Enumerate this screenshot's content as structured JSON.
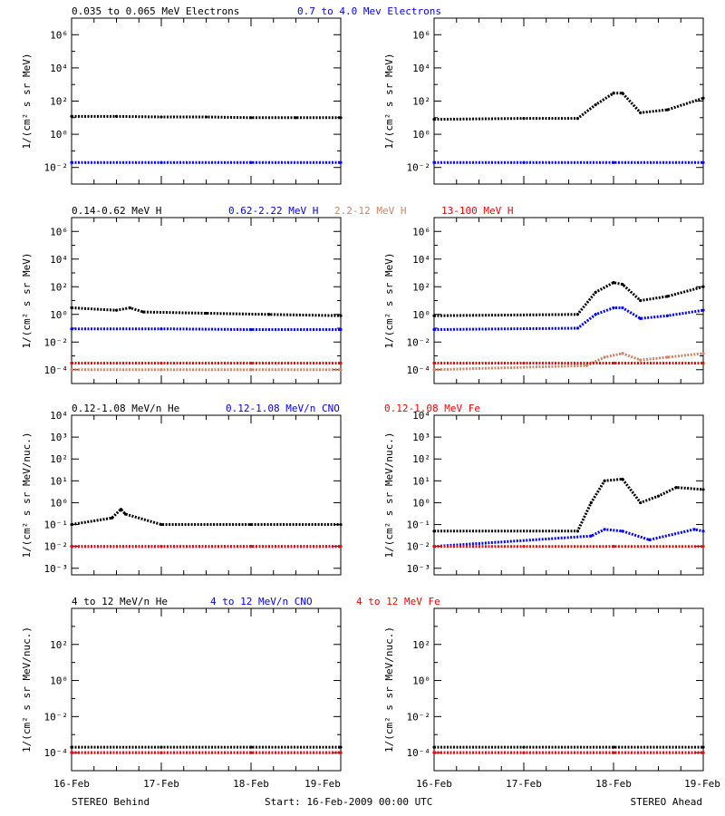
{
  "colors": {
    "black": "#000000",
    "blue": "#0000ff",
    "tan": "#c8866a",
    "red": "#ff0000"
  },
  "rows": [
    {
      "labels": [
        {
          "text": "0.035 to 0.065 MeV Electrons",
          "color": "#000000"
        },
        {
          "text": "0.7 to 4.0 Mev Electrons",
          "color": "#0000ff"
        }
      ],
      "ylabel": "1/(cm² s sr MeV)",
      "ticks": [
        {
          "exp": -2,
          "label": "10⁻²"
        },
        {
          "exp": 0,
          "label": "10⁰"
        },
        {
          "exp": 2,
          "label": "10²"
        },
        {
          "exp": 4,
          "label": "10⁴"
        },
        {
          "exp": 6,
          "label": "10⁶"
        }
      ]
    },
    {
      "labels": [
        {
          "text": "0.14-0.62 MeV H",
          "color": "#000000"
        },
        {
          "text": "0.62-2.22 MeV H",
          "color": "#0000ff"
        },
        {
          "text": "2.2-12 MeV H",
          "color": "#c8866a"
        },
        {
          "text": "13-100 MeV H",
          "color": "#ff0000"
        }
      ],
      "ylabel": "1/(cm² s sr MeV)",
      "ticks": [
        {
          "exp": -4,
          "label": "10⁻⁴"
        },
        {
          "exp": -2,
          "label": "10⁻²"
        },
        {
          "exp": 0,
          "label": "10⁰"
        },
        {
          "exp": 2,
          "label": "10²"
        },
        {
          "exp": 4,
          "label": "10⁴"
        },
        {
          "exp": 6,
          "label": "10⁶"
        }
      ]
    },
    {
      "labels": [
        {
          "text": "0.12-1.08 MeV/n He",
          "color": "#000000"
        },
        {
          "text": "0.12-1.08 MeV/n CNO",
          "color": "#0000ff"
        },
        {
          "text": "0.12-1.08 MeV Fe",
          "color": "#ff0000"
        }
      ],
      "ylabel": "1/(cm² s sr MeV/nuc.)",
      "ticks": [
        {
          "exp": -3,
          "label": "10⁻³"
        },
        {
          "exp": -2,
          "label": "10⁻²"
        },
        {
          "exp": -1,
          "label": "10⁻¹"
        },
        {
          "exp": 0,
          "label": "10⁰"
        },
        {
          "exp": 1,
          "label": "10¹"
        },
        {
          "exp": 2,
          "label": "10²"
        },
        {
          "exp": 3,
          "label": "10³"
        },
        {
          "exp": 4,
          "label": "10⁴"
        }
      ]
    },
    {
      "labels": [
        {
          "text": "4 to 12 MeV/n He",
          "color": "#000000"
        },
        {
          "text": "4 to 12 MeV/n CNO",
          "color": "#0000ff"
        },
        {
          "text": "4 to 12 MeV Fe",
          "color": "#ff0000"
        }
      ],
      "ylabel": "1/(cm² s sr MeV/nuc.)",
      "ticks": [
        {
          "exp": -4,
          "label": "10⁻⁴"
        },
        {
          "exp": -2,
          "label": "10⁻²"
        },
        {
          "exp": 0,
          "label": "10⁰"
        },
        {
          "exp": 2,
          "label": "10²"
        }
      ]
    }
  ],
  "x_tick_labels": [
    "16-Feb",
    "17-Feb",
    "18-Feb",
    "19-Feb"
  ],
  "footer": {
    "left": "STEREO Behind",
    "center": "Start: 16-Feb-2009 00:00 UTC",
    "right": "STEREO Ahead"
  },
  "chart_data": [
    {
      "type": "scatter",
      "panel": "STEREO Behind electrons",
      "yscale": "log",
      "ylim": [
        0.001,
        10000000
      ],
      "x_unit": "days since 16-Feb-2009 00:00 UTC",
      "xlim": [
        0,
        3
      ],
      "series": [
        {
          "name": "0.035 to 0.065 MeV Electrons",
          "color": "#000000",
          "x": [
            0,
            0.5,
            1,
            1.5,
            2,
            2.5,
            3
          ],
          "y": [
            12,
            12,
            11,
            11,
            10,
            10,
            10
          ]
        },
        {
          "name": "0.7 to 4.0 Mev Electrons",
          "color": "#0000ff",
          "x": [
            0,
            1,
            2,
            3
          ],
          "y": [
            0.02,
            0.02,
            0.02,
            0.02
          ]
        }
      ]
    },
    {
      "type": "scatter",
      "panel": "STEREO Ahead electrons",
      "yscale": "log",
      "ylim": [
        0.001,
        10000000
      ],
      "x_unit": "days since 16-Feb-2009 00:00 UTC",
      "xlim": [
        0,
        3
      ],
      "series": [
        {
          "name": "0.035 to 0.065 MeV Electrons",
          "color": "#000000",
          "x": [
            0,
            1,
            1.6,
            1.8,
            2.0,
            2.1,
            2.3,
            2.6,
            3.0
          ],
          "y": [
            8,
            9,
            9,
            60,
            300,
            300,
            20,
            30,
            150
          ]
        },
        {
          "name": "0.7 to 4.0 Mev Electrons",
          "color": "#0000ff",
          "x": [
            0,
            1,
            2,
            3
          ],
          "y": [
            0.02,
            0.02,
            0.02,
            0.02
          ]
        }
      ]
    },
    {
      "type": "scatter",
      "panel": "STEREO Behind H",
      "yscale": "log",
      "ylim": [
        1e-05,
        10000000
      ],
      "x_unit": "days since 16-Feb-2009 00:00 UTC",
      "xlim": [
        0,
        3
      ],
      "series": [
        {
          "name": "0.14-0.62 MeV H",
          "color": "#000000",
          "x": [
            0,
            0.5,
            0.65,
            0.8,
            1.5,
            2.2,
            3.0
          ],
          "y": [
            3,
            2,
            3,
            1.5,
            1.2,
            1.0,
            0.8
          ]
        },
        {
          "name": "0.62-2.22 MeV H",
          "color": "#0000ff",
          "x": [
            0,
            1,
            2,
            3
          ],
          "y": [
            0.09,
            0.09,
            0.08,
            0.08
          ]
        },
        {
          "name": "2.2-12 MeV H",
          "color": "#c8866a",
          "x": [
            0,
            1,
            2,
            3
          ],
          "y": [
            0.0001,
            0.0001,
            0.0001,
            0.0001
          ]
        },
        {
          "name": "13-100 MeV H",
          "color": "#ff0000",
          "x": [
            0,
            1,
            2,
            3
          ],
          "y": [
            0.0003,
            0.0003,
            0.0003,
            0.0003
          ]
        }
      ]
    },
    {
      "type": "scatter",
      "panel": "STEREO Ahead H",
      "yscale": "log",
      "ylim": [
        1e-05,
        10000000
      ],
      "x_unit": "days since 16-Feb-2009 00:00 UTC",
      "xlim": [
        0,
        3
      ],
      "series": [
        {
          "name": "0.14-0.62 MeV H",
          "color": "#000000",
          "x": [
            0,
            1.6,
            1.8,
            2.0,
            2.1,
            2.3,
            2.6,
            3.0
          ],
          "y": [
            0.8,
            1,
            40,
            200,
            150,
            10,
            20,
            100
          ]
        },
        {
          "name": "0.62-2.22 MeV H",
          "color": "#0000ff",
          "x": [
            0,
            1.6,
            1.8,
            2.0,
            2.1,
            2.3,
            2.6,
            3.0
          ],
          "y": [
            0.08,
            0.1,
            1,
            3,
            3,
            0.5,
            0.8,
            2
          ]
        },
        {
          "name": "2.2-12 MeV H",
          "color": "#c8866a",
          "x": [
            0,
            1.7,
            1.9,
            2.1,
            2.3,
            2.6,
            3.0
          ],
          "y": [
            0.0001,
            0.0002,
            0.0008,
            0.0015,
            0.0005,
            0.0008,
            0.0015
          ]
        },
        {
          "name": "13-100 MeV H",
          "color": "#ff0000",
          "x": [
            0,
            1,
            2,
            3
          ],
          "y": [
            0.0003,
            0.0003,
            0.0003,
            0.0003
          ]
        }
      ]
    },
    {
      "type": "scatter",
      "panel": "STEREO Behind low-energy ions",
      "yscale": "log",
      "ylim": [
        0.0005,
        10000
      ],
      "x_unit": "days since 16-Feb-2009 00:00 UTC",
      "xlim": [
        0,
        3
      ],
      "series": [
        {
          "name": "0.12-1.08 MeV/n He",
          "color": "#000000",
          "x": [
            0,
            0.45,
            0.55,
            0.6,
            1,
            2,
            3
          ],
          "y": [
            0.1,
            0.2,
            0.5,
            0.3,
            0.1,
            0.1,
            0.1
          ]
        },
        {
          "name": "0.12-1.08 MeV/n CNO",
          "color": "#0000ff",
          "x": [
            0,
            1,
            2,
            3
          ],
          "y": [
            0.01,
            0.01,
            0.01,
            0.01
          ]
        },
        {
          "name": "0.12-1.08 MeV Fe",
          "color": "#ff0000",
          "x": [
            0,
            1,
            2,
            3
          ],
          "y": [
            0.01,
            0.01,
            0.01,
            0.01
          ]
        }
      ]
    },
    {
      "type": "scatter",
      "panel": "STEREO Ahead low-energy ions",
      "yscale": "log",
      "ylim": [
        0.0005,
        10000
      ],
      "x_unit": "days since 16-Feb-2009 00:00 UTC",
      "xlim": [
        0,
        3
      ],
      "series": [
        {
          "name": "0.12-1.08 MeV/n He",
          "color": "#000000",
          "x": [
            0,
            1.6,
            1.75,
            1.9,
            2.1,
            2.3,
            2.5,
            2.7,
            3.0
          ],
          "y": [
            0.05,
            0.05,
            1,
            10,
            12,
            1,
            2,
            5,
            4
          ]
        },
        {
          "name": "0.12-1.08 MeV/n CNO",
          "color": "#0000ff",
          "x": [
            0,
            1.75,
            1.9,
            2.1,
            2.4,
            2.9,
            3.0
          ],
          "y": [
            0.01,
            0.03,
            0.06,
            0.05,
            0.02,
            0.06,
            0.05
          ]
        },
        {
          "name": "0.12-1.08 MeV Fe",
          "color": "#ff0000",
          "x": [
            0,
            1,
            2,
            3
          ],
          "y": [
            0.01,
            0.01,
            0.01,
            0.01
          ]
        }
      ]
    },
    {
      "type": "scatter",
      "panel": "STEREO Behind high-energy ions",
      "yscale": "log",
      "ylim": [
        1e-05,
        10000
      ],
      "x_unit": "days since 16-Feb-2009 00:00 UTC",
      "xlim": [
        0,
        3
      ],
      "series": [
        {
          "name": "4 to 12 MeV/n He",
          "color": "#000000",
          "x": [
            0,
            1,
            2,
            3
          ],
          "y": [
            0.0002,
            0.0002,
            0.0002,
            0.0002
          ]
        },
        {
          "name": "4 to 12 MeV/n CNO",
          "color": "#0000ff",
          "x": [
            0,
            1,
            2,
            3
          ],
          "y": [
            0.0001,
            0.0001,
            0.0001,
            0.0001
          ]
        },
        {
          "name": "4 to 12 MeV Fe",
          "color": "#ff0000",
          "x": [
            0,
            1,
            2,
            3
          ],
          "y": [
            0.0001,
            0.0001,
            0.0001,
            0.0001
          ]
        }
      ]
    },
    {
      "type": "scatter",
      "panel": "STEREO Ahead high-energy ions",
      "yscale": "log",
      "ylim": [
        1e-05,
        10000
      ],
      "x_unit": "days since 16-Feb-2009 00:00 UTC",
      "xlim": [
        0,
        3
      ],
      "series": [
        {
          "name": "4 to 12 MeV/n He",
          "color": "#000000",
          "x": [
            0,
            1,
            2,
            3
          ],
          "y": [
            0.0002,
            0.0002,
            0.0002,
            0.0002
          ]
        },
        {
          "name": "4 to 12 MeV/n CNO",
          "color": "#0000ff",
          "x": [
            0,
            1,
            2,
            3
          ],
          "y": [
            0.0001,
            0.0001,
            0.0001,
            0.0001
          ]
        },
        {
          "name": "4 to 12 MeV Fe",
          "color": "#ff0000",
          "x": [
            0,
            1,
            2,
            3
          ],
          "y": [
            0.0001,
            0.0001,
            0.0001,
            0.0001
          ]
        }
      ]
    }
  ]
}
